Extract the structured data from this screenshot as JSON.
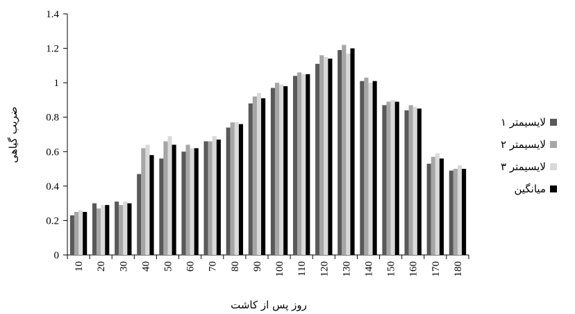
{
  "chart_data": {
    "type": "bar",
    "title": "",
    "xlabel": "روز پس از کاشت",
    "ylabel": "ضریب گیاهی",
    "ylim": [
      0,
      1.4
    ],
    "yticks": [
      "0",
      "0.2",
      "0.4",
      "0.6",
      "0.8",
      "1",
      "1.2",
      "1.4"
    ],
    "grid": false,
    "legend_position": "right",
    "categories": [
      "10",
      "20",
      "30",
      "40",
      "50",
      "60",
      "70",
      "80",
      "90",
      "100",
      "110",
      "120",
      "130",
      "140",
      "150",
      "160",
      "170",
      "180"
    ],
    "series": [
      {
        "name": "لایسیمتر ۱",
        "color": "#595959",
        "values": [
          0.23,
          0.3,
          0.31,
          0.47,
          0.56,
          0.6,
          0.66,
          0.74,
          0.88,
          0.97,
          1.04,
          1.11,
          1.19,
          1.01,
          0.87,
          0.84,
          0.53,
          0.49
        ]
      },
      {
        "name": "لایسیمتر ۲",
        "color": "#a6a6a6",
        "values": [
          0.25,
          0.27,
          0.29,
          0.62,
          0.66,
          0.64,
          0.66,
          0.77,
          0.92,
          1.0,
          1.06,
          1.16,
          1.22,
          1.03,
          0.89,
          0.87,
          0.57,
          0.5
        ]
      },
      {
        "name": "لایسیمتر ۳",
        "color": "#d9d9d9",
        "values": [
          0.26,
          0.29,
          0.31,
          0.64,
          0.69,
          0.62,
          0.69,
          0.77,
          0.94,
          0.99,
          1.05,
          1.15,
          1.17,
          1.0,
          0.9,
          0.86,
          0.59,
          0.52
        ]
      },
      {
        "name": "میانگین",
        "color": "#000000",
        "values": [
          0.25,
          0.29,
          0.3,
          0.58,
          0.64,
          0.62,
          0.67,
          0.76,
          0.91,
          0.98,
          1.05,
          1.14,
          1.2,
          1.01,
          0.89,
          0.85,
          0.56,
          0.5
        ]
      }
    ]
  }
}
